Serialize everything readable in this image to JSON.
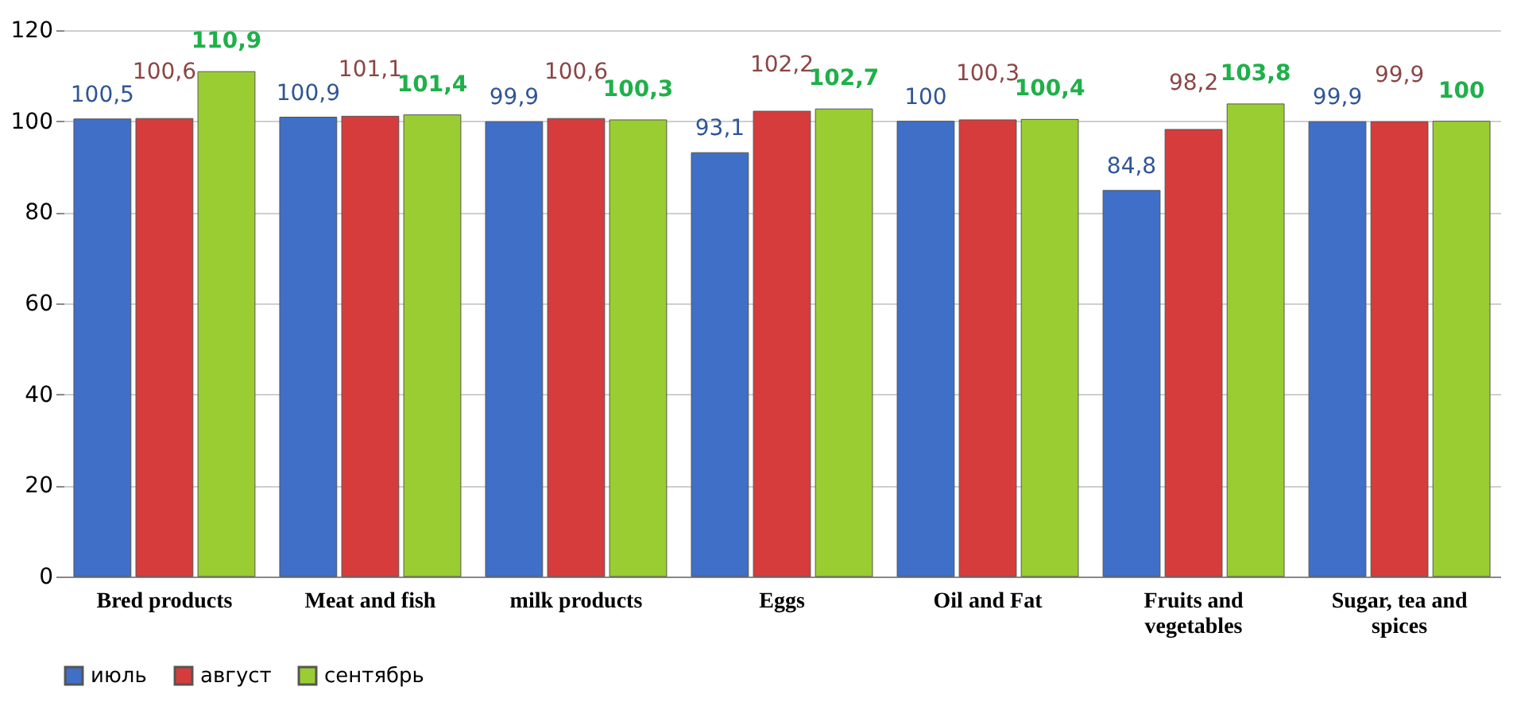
{
  "chart_data": {
    "type": "bar",
    "categories": [
      "Bred products",
      "Meat and fish",
      "milk products",
      "Eggs",
      "Oil and Fat",
      "Fruits and vegetables",
      "Sugar, tea and spices"
    ],
    "series": [
      {
        "name": "июль",
        "color": "#3f6fc6",
        "values": [
          100.5,
          100.9,
          99.9,
          93.1,
          100,
          84.8,
          99.9
        ],
        "value_labels": [
          "100,5",
          "100,9",
          "99,9",
          "93,1",
          "100",
          "84,8",
          "99,9"
        ]
      },
      {
        "name": "август",
        "color": "#d63c3c",
        "values": [
          100.6,
          101.1,
          100.6,
          102.2,
          100.3,
          98.2,
          99.9
        ],
        "value_labels": [
          "100,6",
          "101,1",
          "100,6",
          "102,2",
          "100,3",
          "98,2",
          "99,9"
        ]
      },
      {
        "name": "сентябрь",
        "color": "#9acd32",
        "values": [
          110.9,
          101.4,
          100.3,
          102.7,
          100.4,
          103.8,
          100
        ],
        "value_labels": [
          "110,9",
          "101,4",
          "100,3",
          "102,7",
          "100,4",
          "103,8",
          "100"
        ]
      }
    ],
    "ylim": [
      0,
      120
    ],
    "yticks": [
      0,
      20,
      40,
      60,
      80,
      100,
      120
    ],
    "grid": "y",
    "legend": "bottom"
  }
}
